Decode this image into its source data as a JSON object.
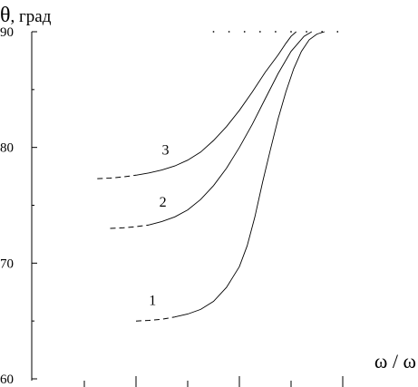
{
  "chart_data": {
    "type": "line",
    "ylabel_symbol": "θ",
    "ylabel_unit": ", град",
    "xlabel": "ω / ω",
    "ylim": [
      60,
      90
    ],
    "y_ticks": [
      60,
      70,
      80,
      90
    ],
    "y_tick_labels": [
      "60",
      "70",
      "80",
      "90"
    ],
    "grid": false,
    "series": [
      {
        "name": "1",
        "x": [
          0.0,
          0.05,
          0.1,
          0.15,
          0.2,
          0.25,
          0.3,
          0.35,
          0.4,
          0.43,
          0.46,
          0.49,
          0.52,
          0.55,
          0.58,
          0.61,
          0.64,
          0.67,
          0.7,
          0.73
        ],
        "y": [
          65.0,
          65.05,
          65.15,
          65.35,
          65.6,
          66.0,
          66.7,
          67.9,
          69.7,
          71.5,
          74.0,
          77.0,
          79.8,
          82.5,
          84.8,
          86.8,
          88.3,
          89.3,
          89.8,
          90.0
        ]
      },
      {
        "name": "2",
        "x": [
          -0.1,
          -0.05,
          0.0,
          0.05,
          0.1,
          0.15,
          0.2,
          0.25,
          0.3,
          0.35,
          0.4,
          0.45,
          0.5,
          0.55,
          0.6,
          0.65,
          0.68
        ],
        "y": [
          73.0,
          73.05,
          73.15,
          73.3,
          73.6,
          74.0,
          74.6,
          75.5,
          76.7,
          78.2,
          80.0,
          82.0,
          84.2,
          86.4,
          88.3,
          89.6,
          90.0
        ]
      },
      {
        "name": "3",
        "x": [
          -0.15,
          -0.1,
          -0.05,
          0.0,
          0.05,
          0.1,
          0.15,
          0.2,
          0.25,
          0.3,
          0.35,
          0.4,
          0.45,
          0.5,
          0.55,
          0.58,
          0.6,
          0.62
        ],
        "y": [
          77.3,
          77.35,
          77.45,
          77.6,
          77.8,
          78.05,
          78.4,
          78.9,
          79.6,
          80.6,
          81.8,
          83.2,
          84.8,
          86.5,
          88.0,
          89.0,
          89.6,
          90.0
        ]
      }
    ],
    "dotted_top_x": [
      0.3,
      0.36,
      0.42,
      0.48,
      0.54,
      0.6,
      0.66,
      0.72,
      0.78
    ]
  }
}
